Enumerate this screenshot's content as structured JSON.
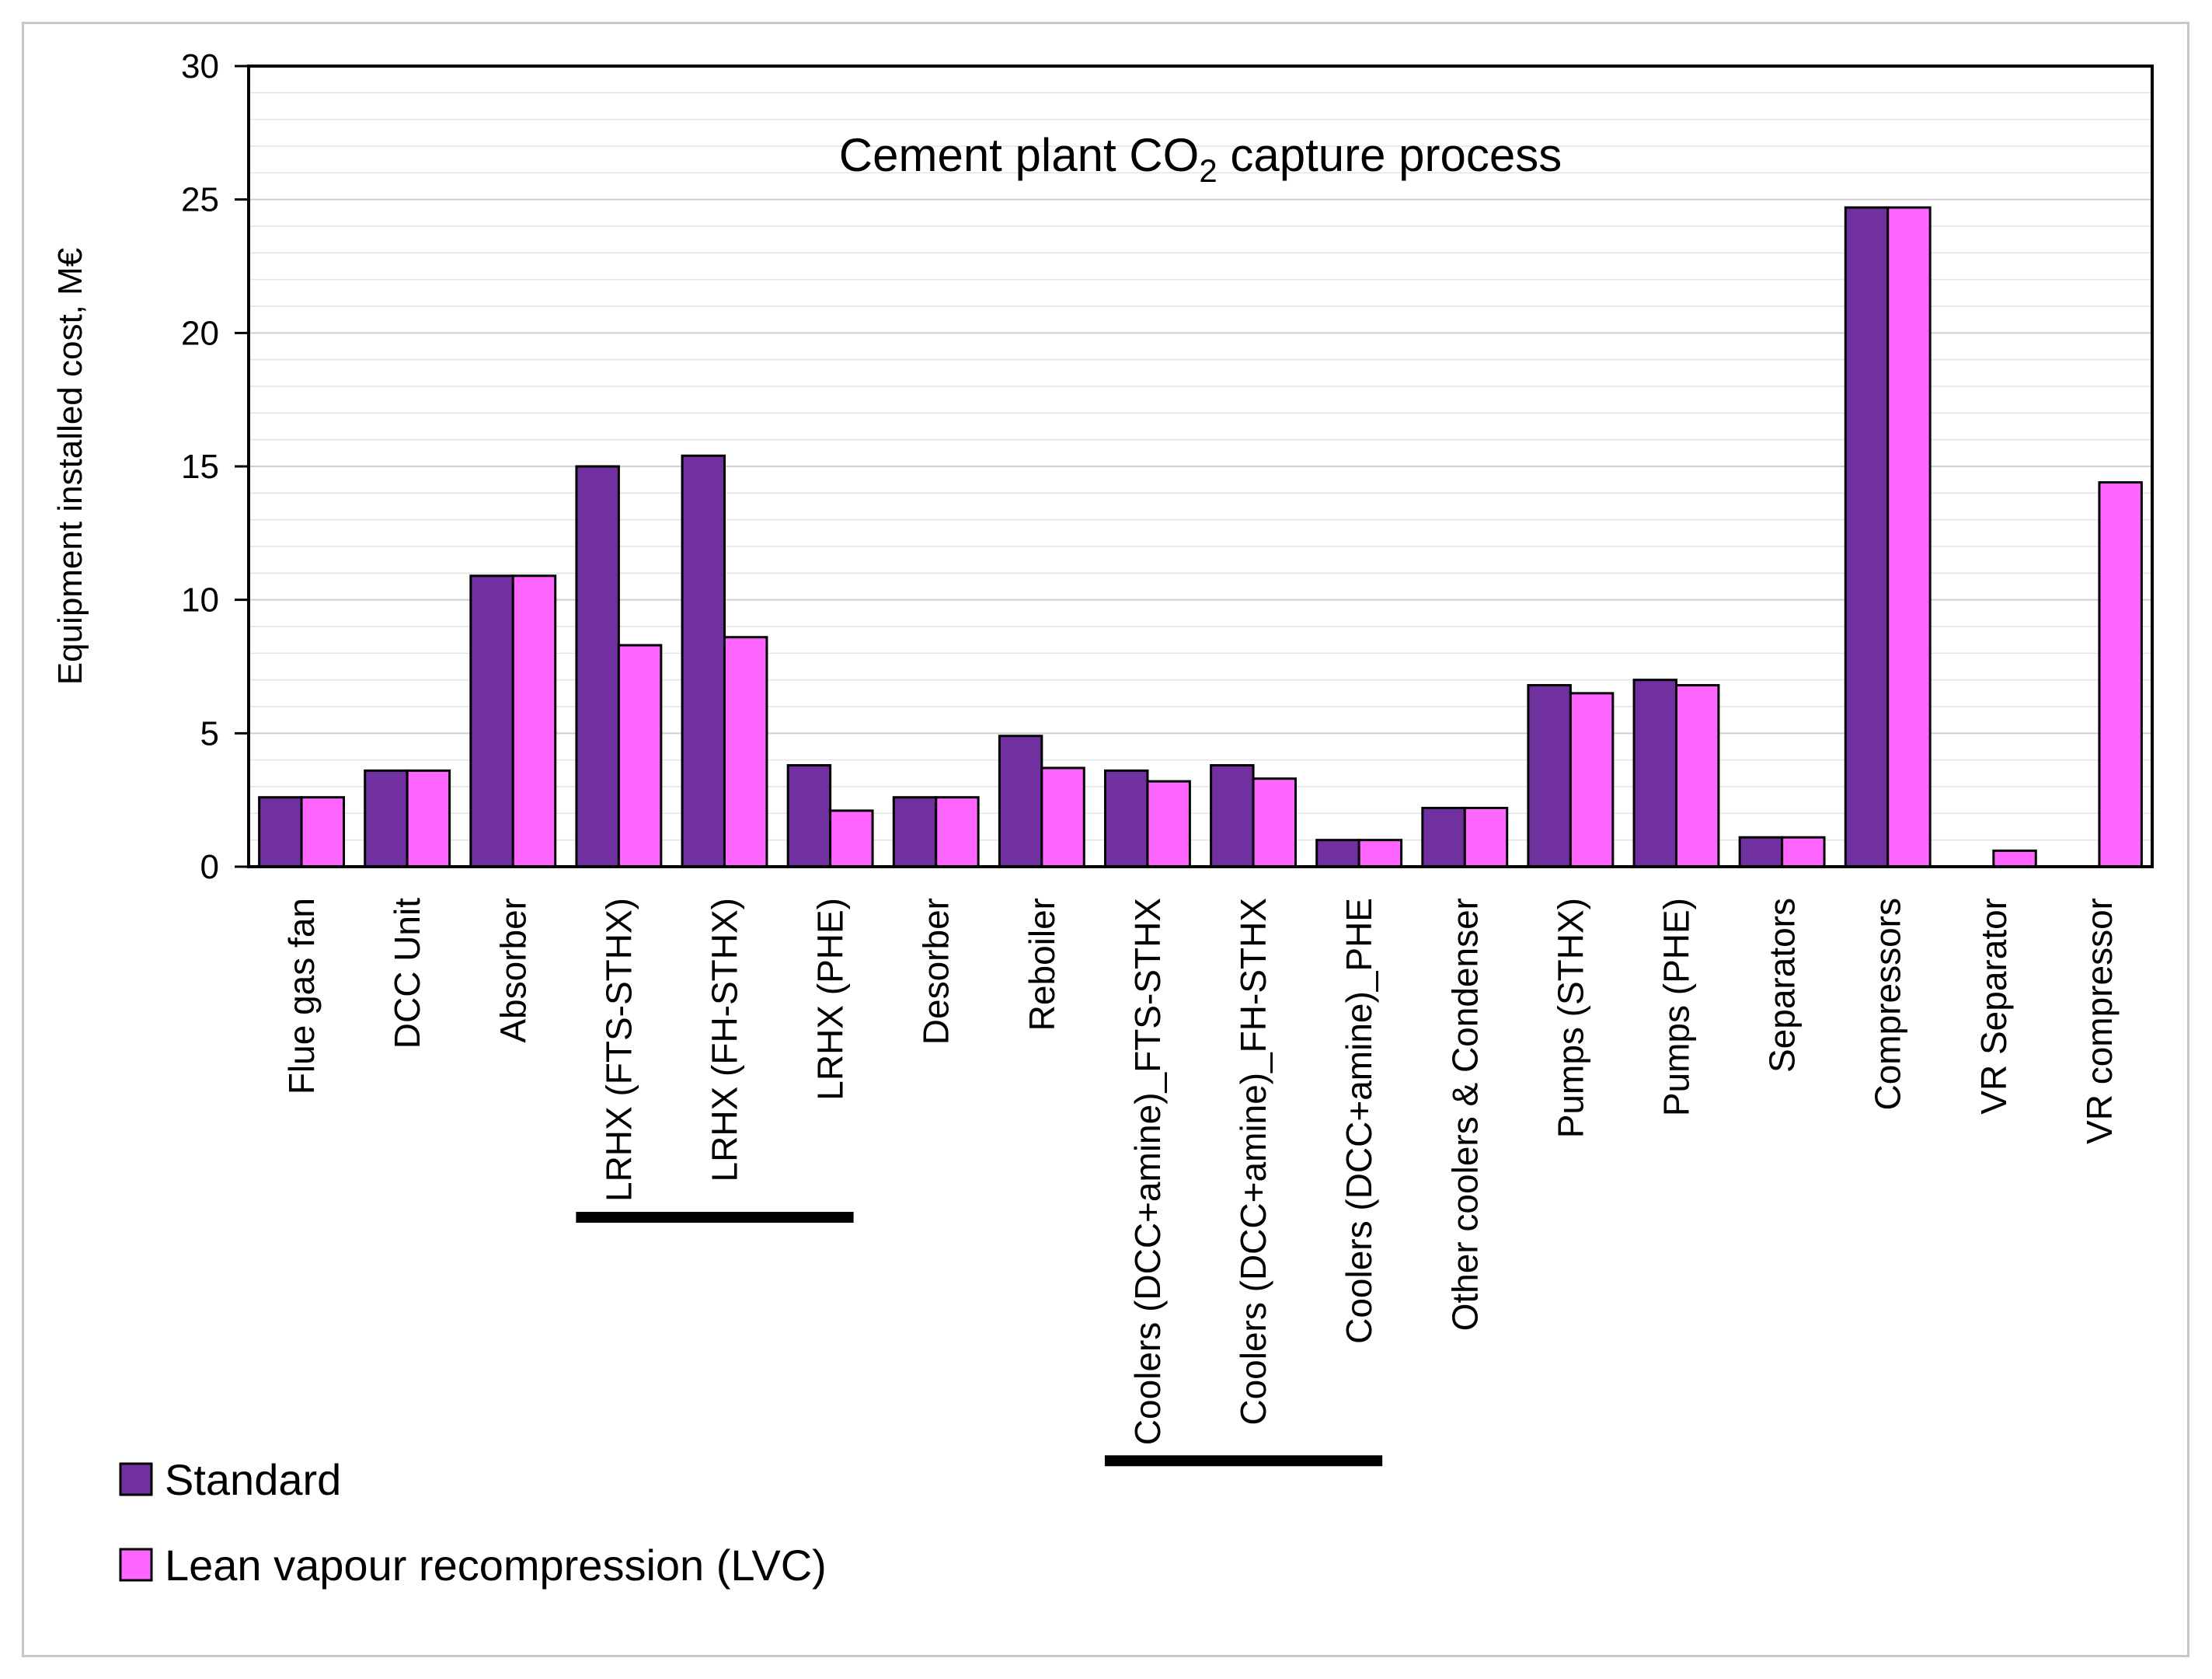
{
  "chart_data": {
    "type": "bar",
    "title": "Cement plant CO₂ capture process",
    "xlabel": "",
    "ylabel": "Equipment installed cost, M€",
    "ylim": [
      0,
      30
    ],
    "yticks": [
      0,
      5,
      10,
      15,
      20,
      25,
      30
    ],
    "grid": "horizontal minor gridlines",
    "legend_position": "bottom-left",
    "categories": [
      "Flue gas fan",
      "DCC Unit",
      "Absorber",
      "LRHX (FTS-STHX)",
      "LRHX (FH-STHX)",
      "LRHX (PHE)",
      "Desorber",
      "Reboiler",
      "Coolers (DCC+amine)_FTS-STHX",
      "Coolers (DCC+amine)_FH-STHX",
      "Coolers (DCC+amine)_PHE",
      "Other coolers & Condenser",
      "Pumps (STHX)",
      "Pumps (PHE)",
      "Separators",
      "Compressors",
      "VR Separator",
      "VR compressor"
    ],
    "series": [
      {
        "name": "Standard",
        "color": "#7030a0",
        "values": [
          2.6,
          3.6,
          10.9,
          15.0,
          15.4,
          3.8,
          2.6,
          4.9,
          3.6,
          3.8,
          1.0,
          2.2,
          6.8,
          7.0,
          1.1,
          24.7,
          0,
          0
        ]
      },
      {
        "name": "Lean vapour recompression (LVC)",
        "color": "#ff66ff",
        "values": [
          2.6,
          3.6,
          10.9,
          8.3,
          8.6,
          2.1,
          2.6,
          3.7,
          3.2,
          3.3,
          1.0,
          2.2,
          6.5,
          6.8,
          1.1,
          24.7,
          0.6,
          14.4
        ]
      }
    ],
    "annotations": [
      {
        "type": "group-underline",
        "from": "LRHX (FTS-STHX)",
        "to": "LRHX (PHE)"
      },
      {
        "type": "group-underline",
        "from": "Coolers (DCC+amine)_FTS-STHX",
        "to": "Coolers (DCC+amine)_PHE"
      }
    ]
  }
}
